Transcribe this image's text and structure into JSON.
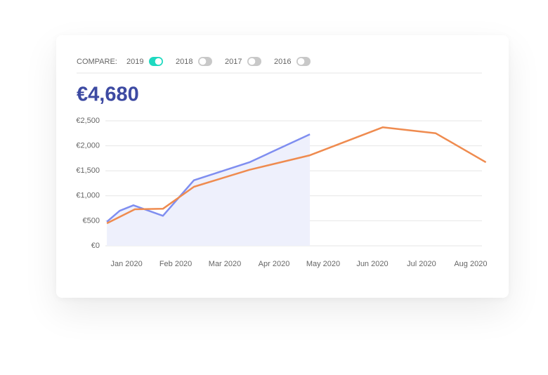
{
  "compare": {
    "label": "COMPARE:",
    "options": [
      {
        "label": "2019",
        "on": true
      },
      {
        "label": "2018",
        "on": false
      },
      {
        "label": "2017",
        "on": false
      },
      {
        "label": "2016",
        "on": false
      }
    ]
  },
  "total": "€4,680",
  "chart_data": {
    "type": "line",
    "xlim": [
      -0.43,
      7.23
    ],
    "xticks": [
      {
        "value": 0,
        "label": "Jan 2020"
      },
      {
        "value": 1,
        "label": "Feb 2020"
      },
      {
        "value": 2,
        "label": "Mar 2020"
      },
      {
        "value": 3,
        "label": "Apr 2020"
      },
      {
        "value": 4,
        "label": "May 2020"
      },
      {
        "value": 5,
        "label": "Jun 2020"
      },
      {
        "value": 6,
        "label": "Jul 2020"
      },
      {
        "value": 7,
        "label": "Aug 2020"
      }
    ],
    "ylim": [
      0,
      2500
    ],
    "yticks": [
      {
        "value": 0,
        "label": "€0"
      },
      {
        "value": 500,
        "label": "€500"
      },
      {
        "value": 1000,
        "label": "€1,000"
      },
      {
        "value": 1500,
        "label": "€1,500"
      },
      {
        "value": 2000,
        "label": "€2,000"
      },
      {
        "value": 2500,
        "label": "€2,500"
      }
    ],
    "grid": true,
    "series": [
      {
        "color": "#7f8ef0",
        "area_color": "#eef0fc",
        "x": [
          -0.4,
          -0.14,
          0.14,
          0.74,
          1.37,
          2.5,
          3.73
        ],
        "values": [
          480,
          700,
          810,
          600,
          1310,
          1670,
          2230
        ]
      },
      {
        "color": "#ef8b4f",
        "x": [
          -0.4,
          0.17,
          0.74,
          1.37,
          2.5,
          3.73,
          5.21,
          6.29,
          7.31
        ],
        "values": [
          450,
          730,
          740,
          1180,
          1520,
          1810,
          2370,
          2250,
          1670
        ]
      }
    ]
  }
}
